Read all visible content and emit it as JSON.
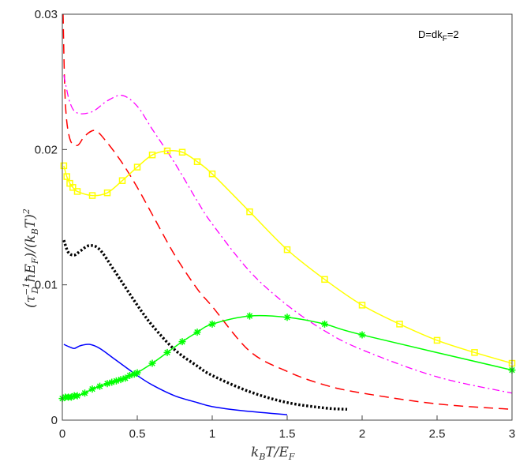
{
  "chart_data": {
    "type": "line",
    "title": "",
    "annotation": {
      "main": "D=dk",
      "sub": "F",
      "tail": "=2"
    },
    "xlabel": {
      "parts": [
        "k",
        "B",
        "T/E",
        "F"
      ]
    },
    "ylabel": {
      "parts": [
        "(τ",
        "−1",
        "D",
        " ħE",
        "F",
        ")/(k",
        "B",
        "T)",
        "2"
      ]
    },
    "xlim": [
      0,
      3
    ],
    "ylim": [
      0,
      0.03
    ],
    "xticks": [
      0,
      0.5,
      1,
      1.5,
      2,
      2.5,
      3
    ],
    "xtick_labels": [
      "0",
      "0.5",
      "1",
      "1.5",
      "2",
      "2.5",
      "3"
    ],
    "yticks": [
      0,
      0.01,
      0.02,
      0.03
    ],
    "ytick_labels": [
      "0",
      "0.01",
      "0.02",
      "0.03"
    ],
    "grid": false,
    "series": [
      {
        "name": "blue-solid",
        "color": "#0000ff",
        "style": "solid",
        "marker": "none",
        "x": [
          0.01,
          0.05,
          0.08,
          0.12,
          0.18,
          0.25,
          0.35,
          0.5,
          0.6,
          0.75,
          0.9,
          1.0,
          1.2,
          1.5
        ],
        "y": [
          0.0056,
          0.0054,
          0.0053,
          0.0055,
          0.0056,
          0.0053,
          0.0045,
          0.0033,
          0.0026,
          0.0018,
          0.0013,
          0.001,
          0.0007,
          0.0004
        ]
      },
      {
        "name": "black-dotted",
        "color": "#000000",
        "style": "dotted",
        "marker": "none",
        "x": [
          0.01,
          0.04,
          0.08,
          0.12,
          0.18,
          0.25,
          0.35,
          0.5,
          0.6,
          0.75,
          0.9,
          1.0,
          1.25,
          1.5,
          1.75,
          1.9
        ],
        "y": [
          0.0133,
          0.0124,
          0.0122,
          0.0125,
          0.0129,
          0.0126,
          0.011,
          0.0085,
          0.007,
          0.0052,
          0.004,
          0.0033,
          0.0021,
          0.0013,
          0.0009,
          0.0008
        ]
      },
      {
        "name": "red-dashed",
        "color": "#ff0000",
        "style": "dashed",
        "marker": "none",
        "x": [
          0.005,
          0.02,
          0.05,
          0.1,
          0.15,
          0.22,
          0.3,
          0.4,
          0.5,
          0.6,
          0.75,
          0.9,
          1.0,
          1.25,
          1.5,
          1.75,
          2.0,
          2.5,
          3.0
        ],
        "y": [
          0.03,
          0.0235,
          0.0208,
          0.0203,
          0.021,
          0.0214,
          0.0205,
          0.019,
          0.0172,
          0.0152,
          0.0122,
          0.0097,
          0.0084,
          0.0051,
          0.0036,
          0.0026,
          0.002,
          0.0012,
          0.0008
        ]
      },
      {
        "name": "magenta-dashdot",
        "color": "#ff00ff",
        "style": "dashdot",
        "marker": "none",
        "x": [
          0.01,
          0.05,
          0.1,
          0.2,
          0.3,
          0.4,
          0.5,
          0.6,
          0.75,
          0.9,
          1.0,
          1.25,
          1.5,
          1.75,
          2.0,
          2.5,
          3.0
        ],
        "y": [
          0.0255,
          0.0235,
          0.0227,
          0.0228,
          0.0236,
          0.024,
          0.0232,
          0.0215,
          0.019,
          0.0162,
          0.0145,
          0.011,
          0.0085,
          0.0066,
          0.0052,
          0.0032,
          0.002
        ]
      },
      {
        "name": "yellow-squares",
        "color": "#ffff00",
        "style": "solid",
        "marker": "square",
        "x": [
          0.01,
          0.03,
          0.05,
          0.07,
          0.1,
          0.2,
          0.3,
          0.4,
          0.5,
          0.6,
          0.7,
          0.8,
          0.9,
          1.0,
          1.25,
          1.5,
          1.75,
          2.0,
          2.25,
          2.5,
          2.75,
          3.0
        ],
        "y": [
          0.0188,
          0.018,
          0.0175,
          0.0172,
          0.0169,
          0.0166,
          0.0168,
          0.0177,
          0.0187,
          0.0196,
          0.0199,
          0.0198,
          0.0191,
          0.0182,
          0.0154,
          0.0126,
          0.0104,
          0.0085,
          0.0071,
          0.0059,
          0.005,
          0.0042
        ]
      },
      {
        "name": "green-stars",
        "color": "#00ff00",
        "style": "solid",
        "marker": "star",
        "x": [
          0.0,
          0.02,
          0.04,
          0.06,
          0.08,
          0.1,
          0.15,
          0.2,
          0.25,
          0.3,
          0.33,
          0.36,
          0.39,
          0.42,
          0.45,
          0.48,
          0.5,
          0.6,
          0.7,
          0.8,
          0.9,
          1.0,
          1.25,
          1.5,
          1.75,
          2.0,
          3.0
        ],
        "y": [
          0.0016,
          0.0017,
          0.0017,
          0.0017,
          0.0018,
          0.0018,
          0.002,
          0.0023,
          0.0025,
          0.0027,
          0.0028,
          0.0029,
          0.003,
          0.0031,
          0.0033,
          0.0034,
          0.0035,
          0.0042,
          0.005,
          0.0058,
          0.0065,
          0.0071,
          0.0077,
          0.0076,
          0.0071,
          0.0063,
          0.0037
        ]
      }
    ]
  }
}
